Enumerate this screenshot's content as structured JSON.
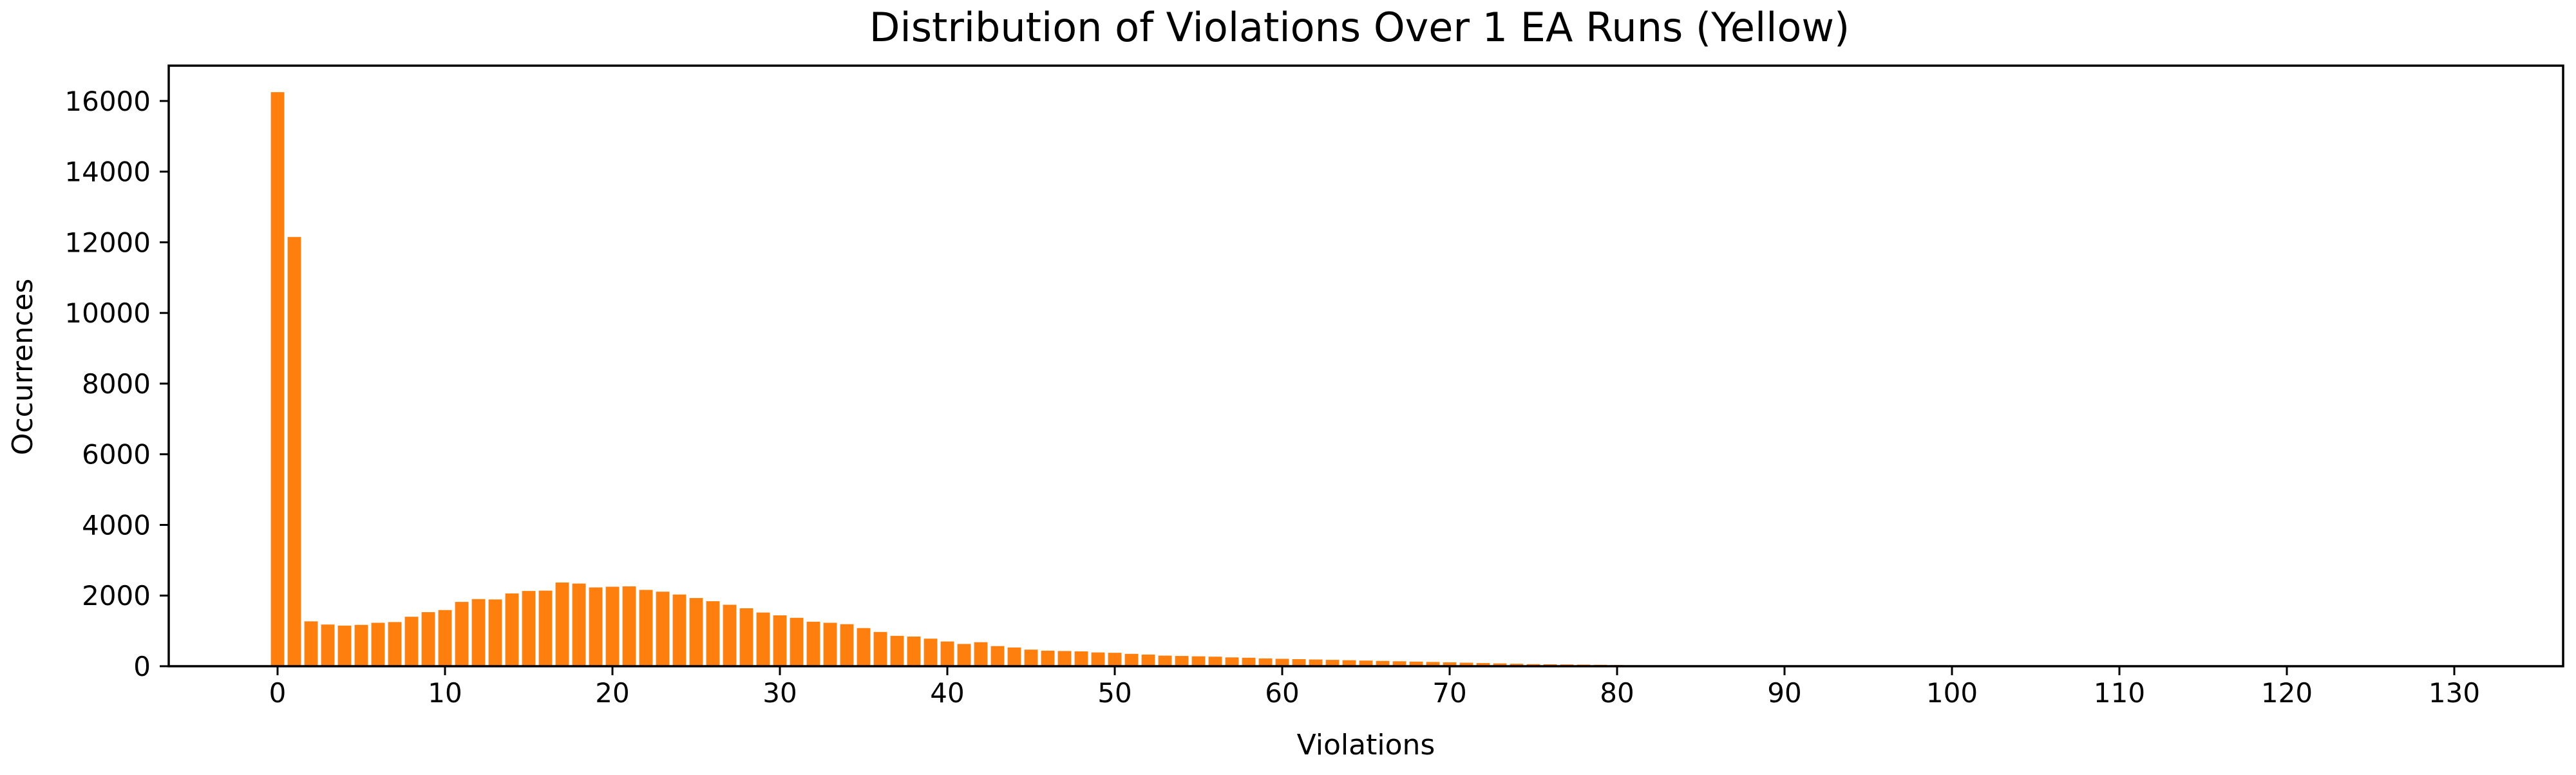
{
  "chart_data": {
    "type": "bar",
    "title": "Distribution of Violations Over 1 EA Runs (Yellow)",
    "xlabel": "Violations",
    "ylabel": "Occurrences",
    "xlim": [
      -6.5,
      136.5
    ],
    "ylim": [
      0,
      17000
    ],
    "xticks": [
      0,
      10,
      20,
      30,
      40,
      50,
      60,
      70,
      80,
      90,
      100,
      110,
      120,
      130
    ],
    "yticks": [
      0,
      2000,
      4000,
      6000,
      8000,
      10000,
      12000,
      14000,
      16000
    ],
    "grid": false,
    "legend": "none",
    "bar_color": "#ff7f0e",
    "x": [
      0,
      1,
      2,
      3,
      4,
      5,
      6,
      7,
      8,
      9,
      10,
      11,
      12,
      13,
      14,
      15,
      16,
      17,
      18,
      19,
      20,
      21,
      22,
      23,
      24,
      25,
      26,
      27,
      28,
      29,
      30,
      31,
      32,
      33,
      34,
      35,
      36,
      37,
      38,
      39,
      40,
      41,
      42,
      43,
      44,
      45,
      46,
      47,
      48,
      49,
      50,
      51,
      52,
      53,
      54,
      55,
      56,
      57,
      58,
      59,
      60,
      61,
      62,
      63,
      64,
      65,
      66,
      67,
      68,
      69,
      70,
      71,
      72,
      73,
      74,
      75,
      76,
      77,
      78,
      79,
      80,
      81,
      82,
      83,
      84,
      85,
      86,
      87,
      88,
      89,
      90,
      91,
      92,
      93,
      94,
      95,
      96,
      97,
      98,
      99,
      100,
      101,
      102,
      103,
      104,
      105,
      106,
      107,
      108,
      109,
      110,
      111,
      112,
      113,
      114,
      115,
      116,
      117,
      118,
      119,
      120,
      121,
      122,
      123,
      124,
      125,
      126,
      127,
      128,
      129,
      130
    ],
    "values": [
      16250,
      12150,
      1270,
      1180,
      1150,
      1170,
      1230,
      1250,
      1400,
      1530,
      1590,
      1820,
      1900,
      1890,
      2060,
      2130,
      2140,
      2370,
      2340,
      2230,
      2250,
      2260,
      2160,
      2110,
      2030,
      1930,
      1840,
      1740,
      1640,
      1520,
      1440,
      1370,
      1260,
      1230,
      1190,
      1080,
      970,
      860,
      840,
      780,
      700,
      630,
      680,
      570,
      530,
      470,
      440,
      430,
      420,
      390,
      380,
      350,
      330,
      300,
      290,
      280,
      270,
      250,
      240,
      220,
      210,
      200,
      190,
      180,
      170,
      160,
      150,
      140,
      130,
      120,
      110,
      100,
      90,
      80,
      70,
      60,
      55,
      50,
      45,
      40,
      35,
      30,
      28,
      25,
      22,
      20,
      18,
      16,
      14,
      12,
      10,
      9,
      8,
      7,
      6,
      5,
      5,
      4,
      4,
      3,
      3,
      3,
      2,
      2,
      2,
      2,
      2,
      1,
      1,
      1,
      1,
      1,
      1,
      1,
      1,
      1,
      1,
      1,
      1,
      1,
      1,
      1,
      1,
      1,
      1,
      1,
      1,
      1,
      1,
      1,
      1
    ]
  }
}
